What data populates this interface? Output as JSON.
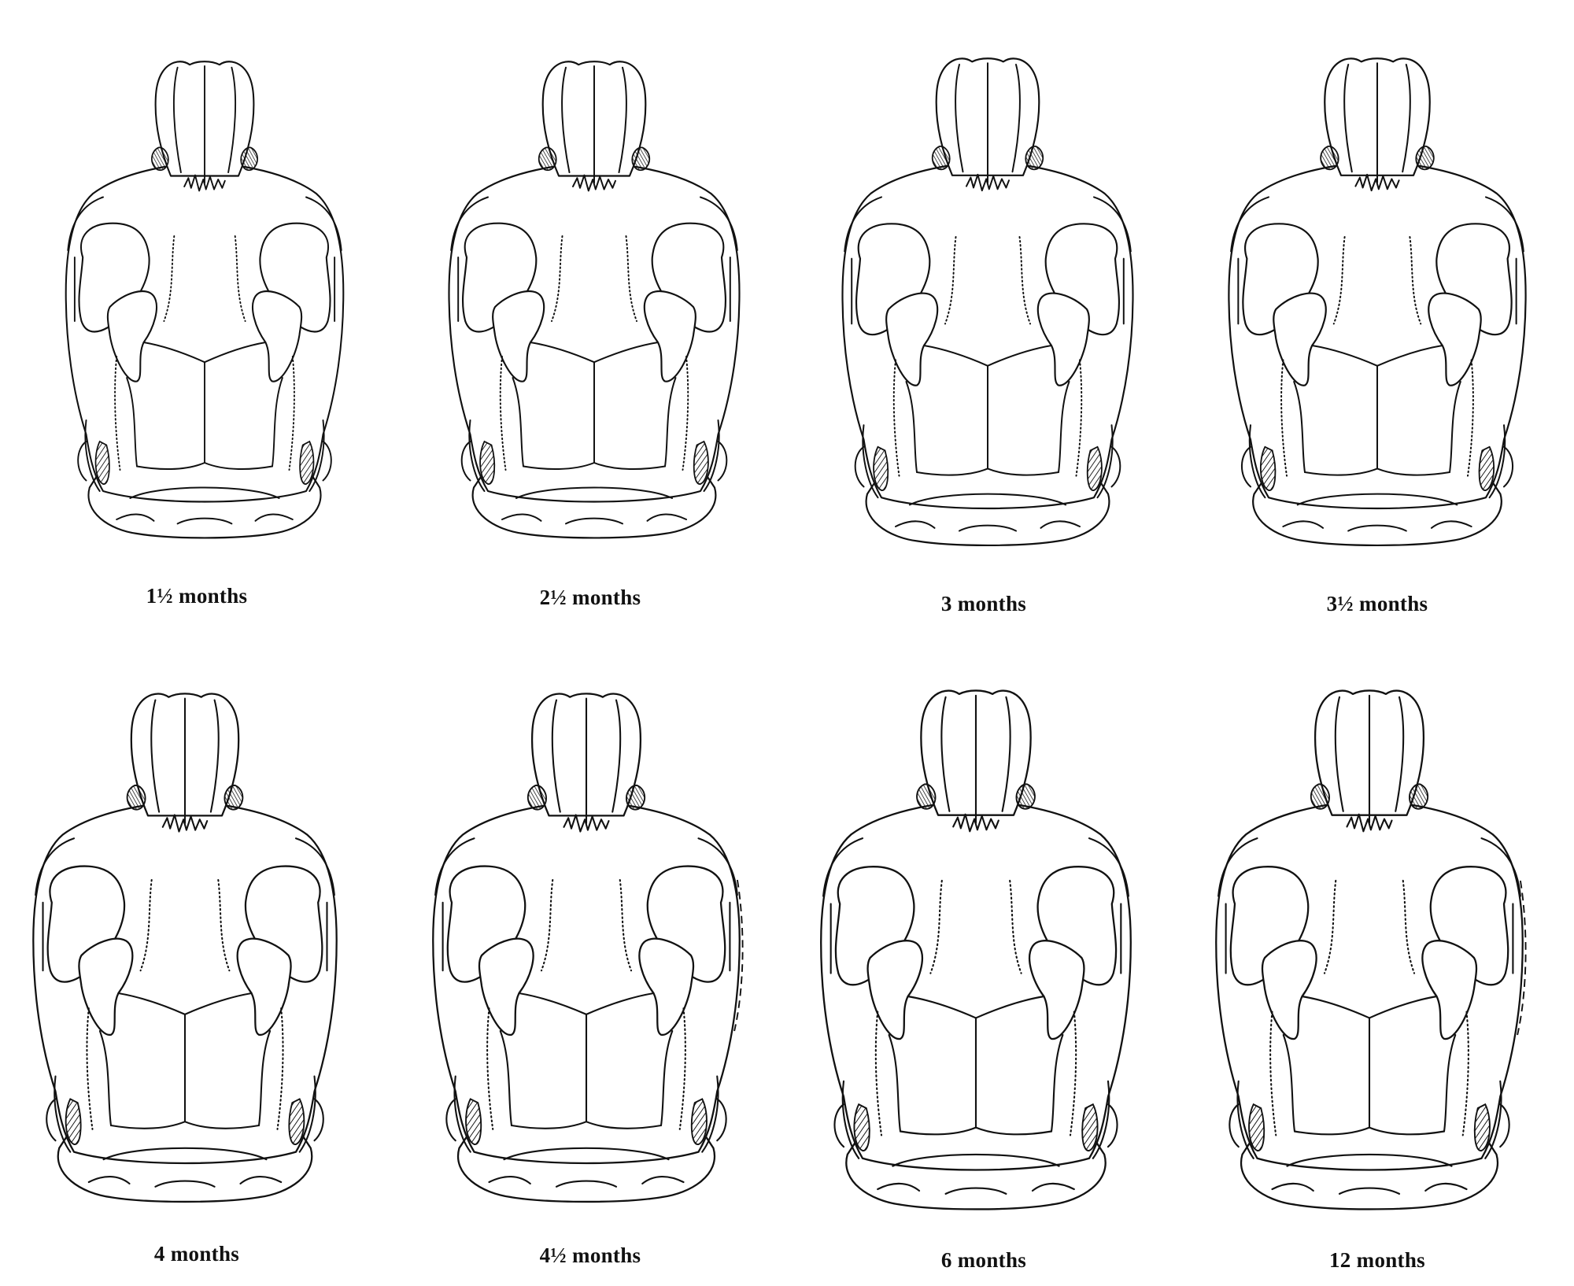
{
  "figure": {
    "panels": [
      {
        "id": "p1",
        "label": "1½ months",
        "row": 1,
        "col": 1
      },
      {
        "id": "p2",
        "label": "2½ months",
        "row": 1,
        "col": 2
      },
      {
        "id": "p3",
        "label": "3 months",
        "row": 1,
        "col": 3
      },
      {
        "id": "p4",
        "label": "3½ months",
        "row": 1,
        "col": 4
      },
      {
        "id": "p5",
        "label": "4 months",
        "row": 2,
        "col": 1
      },
      {
        "id": "p6",
        "label": "4½ months",
        "row": 2,
        "col": 2
      },
      {
        "id": "p7",
        "label": "6 months",
        "row": 2,
        "col": 3
      },
      {
        "id": "p8",
        "label": "12 months",
        "row": 2,
        "col": 4
      }
    ]
  },
  "colors": {
    "ink": "#111111",
    "paper": "#ffffff"
  },
  "icon": "skull-dorsal-view"
}
